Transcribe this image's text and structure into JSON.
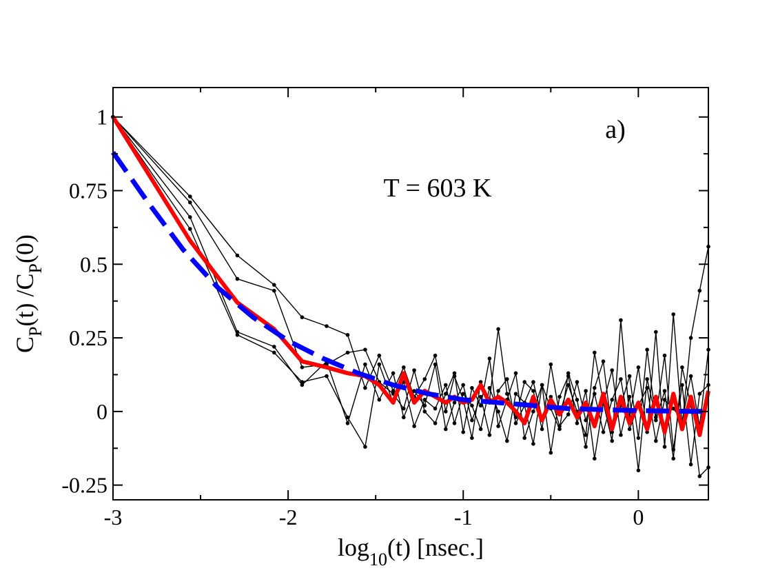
{
  "chart_data": {
    "type": "line",
    "xlim": [
      -3,
      0.4
    ],
    "ylim": [
      -0.3,
      1.1
    ],
    "x_ticks": [
      -3,
      -2,
      -1,
      0
    ],
    "x_tick_labels": [
      "-3",
      "-2",
      "-1",
      "0"
    ],
    "y_ticks": [
      -0.25,
      0,
      0.25,
      0.5,
      0.75,
      1
    ],
    "y_tick_labels": [
      "-0.25",
      "0",
      "0.25",
      "0.5",
      "0.75",
      "1"
    ],
    "xlabel": {
      "prefix": "log",
      "sub": "10",
      "suffix": "(t)  [nsec.]"
    },
    "ylabel": {
      "p1": "C",
      "s1": "P",
      "p2": "(t) /C",
      "s2": "P",
      "p3": "(0)"
    },
    "annotations": {
      "temperature": "T = 603 K",
      "panel": "a)"
    },
    "grid": false,
    "legend": "none",
    "series": [
      {
        "style": "thin-black-markers",
        "color": "#000000",
        "x": [
          -3.0,
          -2.56,
          -2.29,
          -2.08,
          -1.92,
          -1.78,
          -1.66,
          -1.56,
          -1.48,
          -1.4,
          -1.34,
          -1.28,
          -1.22,
          -1.16,
          -1.1,
          -1.05,
          -1.0,
          -0.95,
          -0.9,
          -0.85,
          -0.8,
          -0.75,
          -0.7,
          -0.65,
          -0.6,
          -0.55,
          -0.5,
          -0.45,
          -0.4,
          -0.35,
          -0.3,
          -0.25,
          -0.2,
          -0.15,
          -0.1,
          -0.05,
          0.0,
          0.05,
          0.1,
          0.15,
          0.2,
          0.25,
          0.3,
          0.35,
          0.4
        ],
        "values": [
          1.0,
          0.73,
          0.53,
          0.43,
          0.32,
          0.29,
          0.26,
          0.08,
          0.19,
          0.07,
          0.15,
          0.05,
          0.11,
          0.19,
          0.0,
          0.12,
          0.04,
          -0.09,
          0.1,
          0.04,
          0.28,
          0.06,
          -0.02,
          0.1,
          0.07,
          -0.06,
          0.16,
          -0.01,
          0.09,
          0.0,
          -0.08,
          0.2,
          0.03,
          -0.1,
          0.31,
          -0.02,
          0.15,
          -0.07,
          0.27,
          -0.12,
          0.33,
          -0.05,
          0.25,
          0.41,
          0.56
        ]
      },
      {
        "style": "thin-black-markers",
        "color": "#000000",
        "x": [
          -3.0,
          -2.56,
          -2.29,
          -2.08,
          -1.92,
          -1.78,
          -1.66,
          -1.56,
          -1.48,
          -1.4,
          -1.34,
          -1.28,
          -1.22,
          -1.16,
          -1.1,
          -1.05,
          -1.0,
          -0.95,
          -0.9,
          -0.85,
          -0.8,
          -0.75,
          -0.7,
          -0.65,
          -0.6,
          -0.55,
          -0.5,
          -0.45,
          -0.4,
          -0.35,
          -0.3,
          -0.25,
          -0.2,
          -0.15,
          -0.1,
          -0.05,
          0.0,
          0.05,
          0.1,
          0.15,
          0.2,
          0.25,
          0.3,
          0.35,
          0.4
        ],
        "values": [
          1.0,
          0.71,
          0.45,
          0.41,
          0.15,
          0.16,
          0.2,
          0.21,
          0.1,
          0.06,
          0.01,
          0.14,
          0.0,
          -0.04,
          0.06,
          0.13,
          -0.07,
          0.08,
          0.02,
          0.18,
          -0.05,
          0.04,
          0.13,
          -0.09,
          0.0,
          0.09,
          -0.14,
          0.05,
          0.12,
          -0.04,
          0.07,
          -0.16,
          0.03,
          0.14,
          -0.08,
          0.05,
          -0.2,
          0.11,
          -0.02,
          0.19,
          -0.13,
          0.09,
          -0.18,
          0.06,
          0.09
        ]
      },
      {
        "style": "thin-black-markers",
        "color": "#000000",
        "x": [
          -3.0,
          -2.56,
          -2.29,
          -2.08,
          -1.92,
          -1.78,
          -1.66,
          -1.56,
          -1.48,
          -1.4,
          -1.34,
          -1.28,
          -1.22,
          -1.16,
          -1.1,
          -1.05,
          -1.0,
          -0.95,
          -0.9,
          -0.85,
          -0.8,
          -0.75,
          -0.7,
          -0.65,
          -0.6,
          -0.55,
          -0.5,
          -0.45,
          -0.4,
          -0.35,
          -0.3,
          -0.25,
          -0.2,
          -0.15,
          -0.1,
          -0.05,
          0.0,
          0.05,
          0.1,
          0.15,
          0.2,
          0.25,
          0.3,
          0.35,
          0.4
        ],
        "values": [
          1.0,
          0.66,
          0.27,
          0.22,
          0.09,
          0.17,
          -0.04,
          0.16,
          0.04,
          0.13,
          -0.02,
          0.07,
          0.02,
          0.16,
          -0.06,
          0.03,
          0.09,
          -0.03,
          0.05,
          -0.08,
          0.07,
          0.11,
          -0.04,
          0.02,
          -0.11,
          0.09,
          0.01,
          -0.06,
          0.13,
          0.04,
          -0.12,
          0.08,
          0.17,
          -0.07,
          0.02,
          0.12,
          -0.09,
          0.21,
          -0.03,
          0.07,
          -0.16,
          0.15,
          0.02,
          -0.22,
          -0.19
        ]
      },
      {
        "style": "thin-black-markers",
        "color": "#000000",
        "x": [
          -3.0,
          -2.56,
          -2.29,
          -2.08,
          -1.92,
          -1.78,
          -1.66,
          -1.56,
          -1.48,
          -1.4,
          -1.34,
          -1.28,
          -1.22,
          -1.16,
          -1.1,
          -1.05,
          -1.0,
          -0.95,
          -0.9,
          -0.85,
          -0.8,
          -0.75,
          -0.7,
          -0.65,
          -0.6,
          -0.55,
          -0.5,
          -0.45,
          -0.4,
          -0.35,
          -0.3,
          -0.25,
          -0.2,
          -0.15,
          -0.1,
          -0.05,
          0.0,
          0.05,
          0.1,
          0.15,
          0.2,
          0.25,
          0.3,
          0.35,
          0.4
        ],
        "values": [
          1.0,
          0.62,
          0.26,
          0.2,
          0.1,
          0.12,
          -0.02,
          -0.12,
          0.16,
          0.03,
          0.1,
          -0.05,
          0.04,
          0.01,
          0.09,
          -0.04,
          0.06,
          0.02,
          -0.06,
          0.08,
          0.0,
          -0.1,
          0.06,
          0.03,
          0.1,
          -0.02,
          0.05,
          -0.05,
          -0.01,
          0.1,
          -0.03,
          0.06,
          -0.07,
          0.04,
          0.11,
          -0.06,
          0.02,
          0.08,
          -0.1,
          0.04,
          0.01,
          -0.03,
          0.12,
          -0.05,
          0.21
        ]
      },
      {
        "style": "thick-red",
        "color": "#ff0000",
        "x": [
          -3.0,
          -2.56,
          -2.29,
          -2.08,
          -1.92,
          -1.78,
          -1.66,
          -1.56,
          -1.48,
          -1.4,
          -1.34,
          -1.28,
          -1.22,
          -1.16,
          -1.1,
          -1.05,
          -1.0,
          -0.95,
          -0.9,
          -0.85,
          -0.8,
          -0.75,
          -0.7,
          -0.65,
          -0.6,
          -0.55,
          -0.5,
          -0.45,
          -0.4,
          -0.35,
          -0.3,
          -0.25,
          -0.2,
          -0.15,
          -0.1,
          -0.05,
          0.0,
          0.05,
          0.1,
          0.15,
          0.2,
          0.25,
          0.3,
          0.35,
          0.4
        ],
        "values": [
          1.0,
          0.58,
          0.37,
          0.28,
          0.17,
          0.15,
          0.13,
          0.12,
          0.09,
          0.03,
          0.13,
          0.03,
          0.07,
          0.05,
          0.03,
          0.05,
          0.03,
          0.04,
          0.09,
          0.03,
          0.05,
          0.03,
          0.0,
          -0.04,
          0.05,
          -0.03,
          0.04,
          -0.01,
          0.04,
          -0.02,
          0.03,
          -0.05,
          0.06,
          -0.06,
          0.05,
          -0.04,
          0.03,
          -0.06,
          0.05,
          -0.07,
          0.06,
          -0.06,
          0.05,
          -0.08,
          0.07
        ]
      },
      {
        "style": "thick-blue-dashed",
        "color": "#0000ff",
        "x": [
          -3.0,
          -2.8,
          -2.6,
          -2.4,
          -2.2,
          -2.0,
          -1.8,
          -1.6,
          -1.4,
          -1.2,
          -1.0,
          -0.8,
          -0.6,
          -0.4,
          -0.2,
          0.0,
          0.2,
          0.4
        ],
        "values": [
          0.88,
          0.71,
          0.55,
          0.42,
          0.32,
          0.24,
          0.18,
          0.13,
          0.09,
          0.06,
          0.04,
          0.03,
          0.02,
          0.01,
          0.006,
          0.003,
          0.001,
          0.0
        ]
      }
    ]
  }
}
